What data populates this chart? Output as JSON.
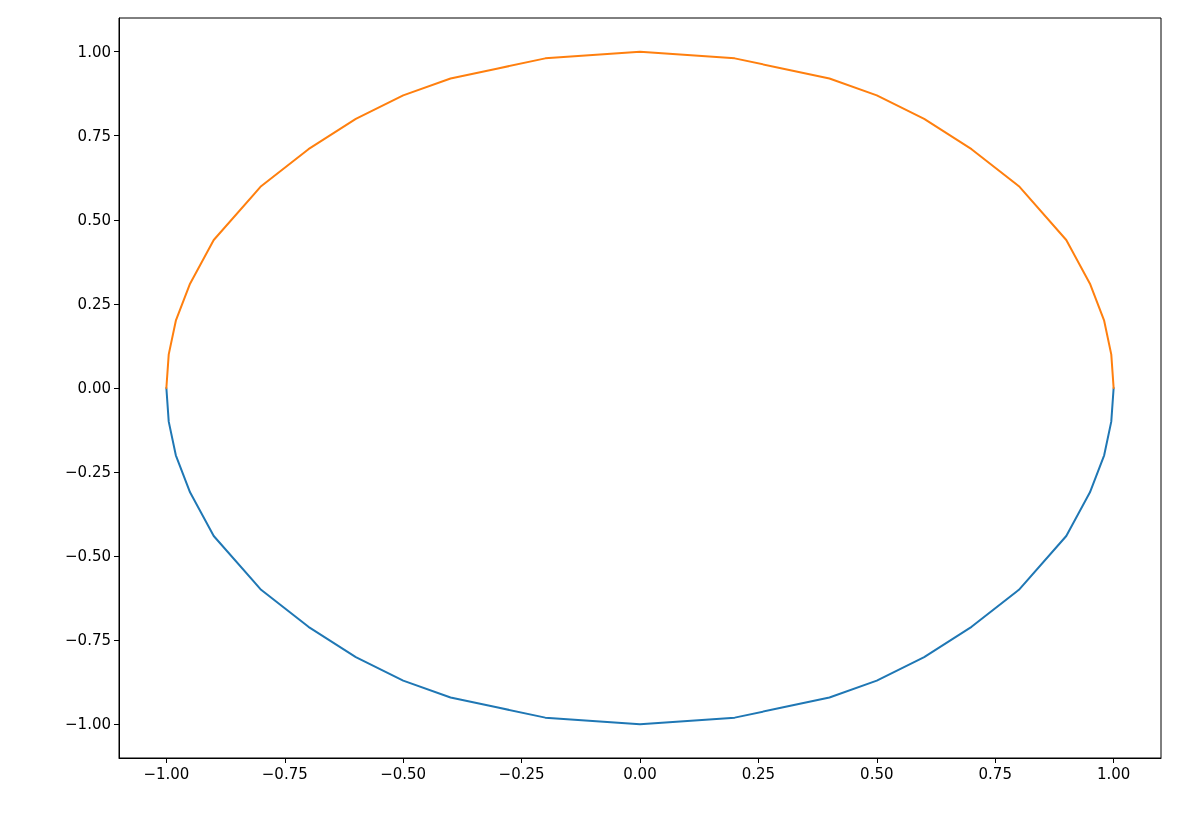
{
  "chart_data": {
    "type": "line",
    "x": [
      -1,
      -0.995,
      -0.98,
      -0.95,
      -0.9,
      -0.8,
      -0.7,
      -0.6,
      -0.5,
      -0.4,
      -0.3,
      -0.2,
      -0.1,
      0,
      0.1,
      0.2,
      0.3,
      0.4,
      0.5,
      0.6,
      0.7,
      0.8,
      0.9,
      0.95,
      0.98,
      0.995,
      1
    ],
    "series": [
      {
        "color": "#1f77b4",
        "values": [
          0,
          -0.1,
          -0.2,
          -0.31,
          -0.44,
          -0.6,
          -0.71,
          -0.8,
          -0.87,
          -0.92,
          -0.95,
          -0.98,
          -0.99,
          -1,
          -0.99,
          -0.98,
          -0.95,
          -0.92,
          -0.87,
          -0.8,
          -0.71,
          -0.6,
          -0.44,
          -0.31,
          -0.2,
          -0.1,
          0
        ]
      },
      {
        "color": "#ff7f0e",
        "values": [
          0,
          0.1,
          0.2,
          0.31,
          0.44,
          0.6,
          0.71,
          0.8,
          0.87,
          0.92,
          0.95,
          0.98,
          0.99,
          1,
          0.99,
          0.98,
          0.95,
          0.92,
          0.87,
          0.8,
          0.71,
          0.6,
          0.44,
          0.31,
          0.2,
          0.1,
          0
        ]
      }
    ],
    "xlim": [
      -1.1,
      1.1
    ],
    "ylim": [
      -1.1,
      1.1
    ],
    "xticks": [
      {
        "value": -1,
        "label": "−1.00"
      },
      {
        "value": -0.75,
        "label": "−0.75"
      },
      {
        "value": -0.5,
        "label": "−0.50"
      },
      {
        "value": -0.25,
        "label": "−0.25"
      },
      {
        "value": 0,
        "label": "0.00"
      },
      {
        "value": 0.25,
        "label": "0.25"
      },
      {
        "value": 0.5,
        "label": "0.50"
      },
      {
        "value": 0.75,
        "label": "0.75"
      },
      {
        "value": 1,
        "label": "1.00"
      }
    ],
    "yticks": [
      {
        "value": -1,
        "label": "−1.00"
      },
      {
        "value": -0.75,
        "label": "−0.75"
      },
      {
        "value": -0.5,
        "label": "−0.50"
      },
      {
        "value": -0.25,
        "label": "−0.25"
      },
      {
        "value": 0,
        "label": "0.00"
      },
      {
        "value": 0.25,
        "label": "0.25"
      },
      {
        "value": 0.5,
        "label": "0.50"
      },
      {
        "value": 0.75,
        "label": "0.75"
      },
      {
        "value": 1,
        "label": "1.00"
      }
    ],
    "grid": false
  }
}
